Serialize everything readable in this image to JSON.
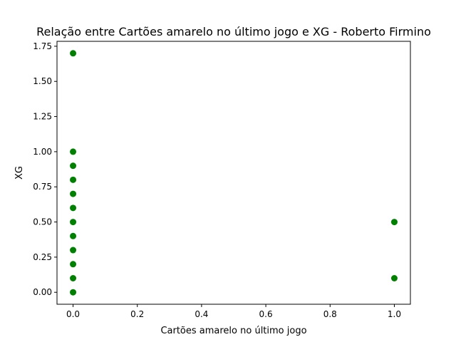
{
  "chart_data": {
    "type": "scatter",
    "title": "Relação entre Cartões amarelo no último jogo e XG - Roberto Firmino",
    "xlabel": "Cartões amarelo no último jogo",
    "ylabel": "XG",
    "xlim": [
      -0.05,
      1.05
    ],
    "ylim": [
      -0.085,
      1.785
    ],
    "xticks": [
      0.0,
      0.2,
      0.4,
      0.6,
      0.8,
      1.0
    ],
    "xtick_labels": [
      "0.0",
      "0.2",
      "0.4",
      "0.6",
      "0.8",
      "1.0"
    ],
    "yticks": [
      0.0,
      0.25,
      0.5,
      0.75,
      1.0,
      1.25,
      1.5,
      1.75
    ],
    "ytick_labels": [
      "0.00",
      "0.25",
      "0.50",
      "0.75",
      "1.00",
      "1.25",
      "1.50",
      "1.75"
    ],
    "grid": false,
    "marker_color": "#008000",
    "series": [
      {
        "points": [
          {
            "x": 0,
            "y": 1.7
          },
          {
            "x": 0,
            "y": 1.0
          },
          {
            "x": 0,
            "y": 0.9
          },
          {
            "x": 0,
            "y": 0.8
          },
          {
            "x": 0,
            "y": 0.7
          },
          {
            "x": 0,
            "y": 0.6
          },
          {
            "x": 0,
            "y": 0.5
          },
          {
            "x": 0,
            "y": 0.4
          },
          {
            "x": 0,
            "y": 0.3
          },
          {
            "x": 0,
            "y": 0.2
          },
          {
            "x": 0,
            "y": 0.1
          },
          {
            "x": 0,
            "y": 0.0
          },
          {
            "x": 1,
            "y": 0.5
          },
          {
            "x": 1,
            "y": 0.1
          }
        ]
      }
    ]
  }
}
